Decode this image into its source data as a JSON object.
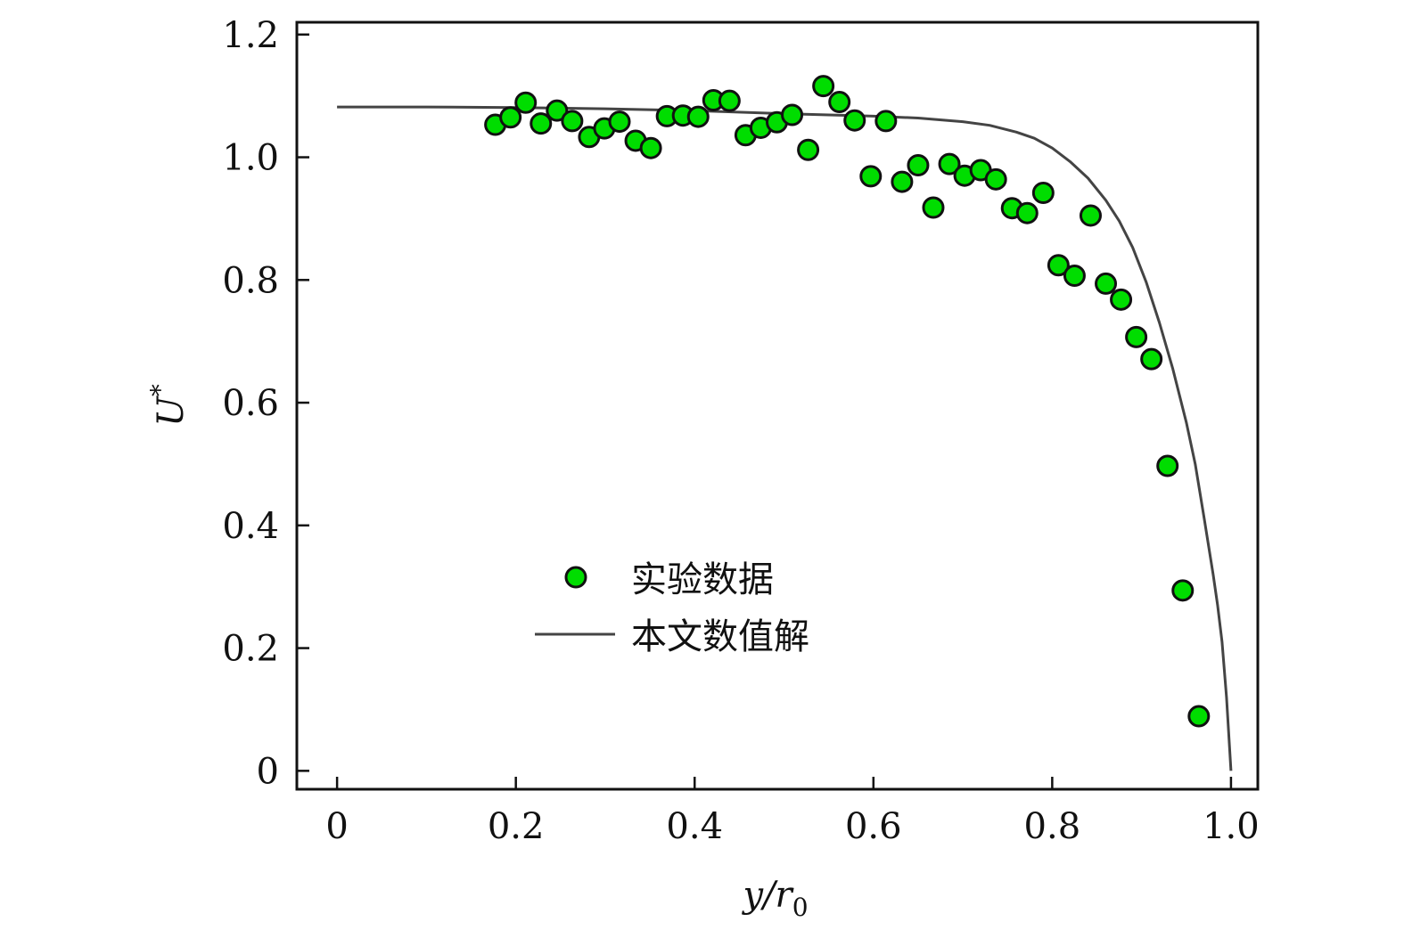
{
  "chart_data": {
    "type": "scatter",
    "xlabel": "y/r0",
    "ylabel": "U*",
    "xlim": [
      -0.045,
      1.03
    ],
    "ylim": [
      -0.03,
      1.22
    ],
    "x_ticks": [
      0,
      0.2,
      0.4,
      0.6,
      0.8,
      1.0
    ],
    "x_tick_labels": [
      "0",
      "0.2",
      "0.4",
      "0.6",
      "0.8",
      "1.0"
    ],
    "y_ticks": [
      0,
      0.2,
      0.4,
      0.6,
      0.8,
      1.0,
      1.2
    ],
    "y_tick_labels": [
      "0",
      "0.2",
      "0.4",
      "0.6",
      "0.8",
      "1.0",
      "1.2"
    ],
    "grid": false,
    "legend_position": "center-left",
    "series": [
      {
        "name": "实验数据",
        "kind": "scatter",
        "color": "#00dd00",
        "edge_color": "#111111",
        "points": [
          [
            0.177,
            1.053
          ],
          [
            0.194,
            1.065
          ],
          [
            0.211,
            1.089
          ],
          [
            0.228,
            1.055
          ],
          [
            0.246,
            1.076
          ],
          [
            0.263,
            1.059
          ],
          [
            0.282,
            1.033
          ],
          [
            0.299,
            1.047
          ],
          [
            0.316,
            1.058
          ],
          [
            0.334,
            1.027
          ],
          [
            0.351,
            1.015
          ],
          [
            0.369,
            1.067
          ],
          [
            0.387,
            1.068
          ],
          [
            0.404,
            1.066
          ],
          [
            0.421,
            1.093
          ],
          [
            0.439,
            1.092
          ],
          [
            0.457,
            1.036
          ],
          [
            0.474,
            1.048
          ],
          [
            0.492,
            1.057
          ],
          [
            0.509,
            1.069
          ],
          [
            0.527,
            1.012
          ],
          [
            0.544,
            1.116
          ],
          [
            0.562,
            1.09
          ],
          [
            0.579,
            1.06
          ],
          [
            0.597,
            0.969
          ],
          [
            0.614,
            1.059
          ],
          [
            0.632,
            0.96
          ],
          [
            0.65,
            0.987
          ],
          [
            0.667,
            0.918
          ],
          [
            0.685,
            0.989
          ],
          [
            0.702,
            0.97
          ],
          [
            0.72,
            0.979
          ],
          [
            0.737,
            0.964
          ],
          [
            0.755,
            0.917
          ],
          [
            0.772,
            0.909
          ],
          [
            0.79,
            0.942
          ],
          [
            0.807,
            0.824
          ],
          [
            0.825,
            0.807
          ],
          [
            0.843,
            0.905
          ],
          [
            0.86,
            0.794
          ],
          [
            0.877,
            0.768
          ],
          [
            0.894,
            0.707
          ],
          [
            0.911,
            0.671
          ],
          [
            0.929,
            0.497
          ],
          [
            0.946,
            0.294
          ],
          [
            0.964,
            0.089
          ]
        ]
      },
      {
        "name": "本文数值解",
        "kind": "line",
        "color": "#444444",
        "points": [
          [
            0,
            1.082
          ],
          [
            0.1,
            1.082
          ],
          [
            0.2,
            1.081
          ],
          [
            0.3,
            1.079
          ],
          [
            0.4,
            1.076
          ],
          [
            0.5,
            1.071
          ],
          [
            0.55,
            1.069
          ],
          [
            0.6,
            1.067
          ],
          [
            0.65,
            1.064
          ],
          [
            0.7,
            1.058
          ],
          [
            0.73,
            1.052
          ],
          [
            0.76,
            1.041
          ],
          [
            0.78,
            1.031
          ],
          [
            0.8,
            1.015
          ],
          [
            0.82,
            0.993
          ],
          [
            0.84,
            0.966
          ],
          [
            0.86,
            0.93
          ],
          [
            0.875,
            0.896
          ],
          [
            0.89,
            0.853
          ],
          [
            0.905,
            0.797
          ],
          [
            0.92,
            0.73
          ],
          [
            0.935,
            0.655
          ],
          [
            0.95,
            0.568
          ],
          [
            0.96,
            0.5
          ],
          [
            0.97,
            0.412
          ],
          [
            0.98,
            0.32
          ],
          [
            0.985,
            0.27
          ],
          [
            0.99,
            0.21
          ],
          [
            0.995,
            0.12
          ],
          [
            1.0,
            0.0
          ]
        ]
      }
    ]
  }
}
